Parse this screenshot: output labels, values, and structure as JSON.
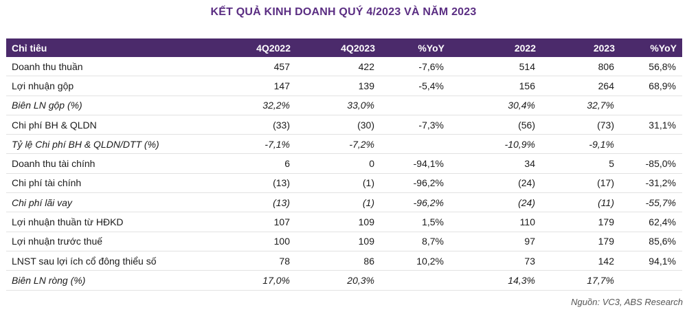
{
  "title": "KẾT QUẢ KINH DOANH QUÝ 4/2023 VÀ NĂM 2023",
  "table": {
    "headers": [
      "Chỉ tiêu",
      "4Q2022",
      "4Q2023",
      "%YoY",
      "2022",
      "2023",
      "%YoY"
    ],
    "rows": [
      {
        "label": "Doanh thu thuần",
        "values": [
          "457",
          "422",
          "-7,6%",
          "514",
          "806",
          "56,8%"
        ],
        "italic": false
      },
      {
        "label": "Lợi nhuận gộp",
        "values": [
          "147",
          "139",
          "-5,4%",
          "156",
          "264",
          "68,9%"
        ],
        "italic": false
      },
      {
        "label": "Biên LN gộp (%)",
        "values": [
          "32,2%",
          "33,0%",
          "",
          "30,4%",
          "32,7%",
          ""
        ],
        "italic": true
      },
      {
        "label": "Chi phí BH & QLDN",
        "values": [
          "(33)",
          "(30)",
          "-7,3%",
          "(56)",
          "(73)",
          "31,1%"
        ],
        "italic": false
      },
      {
        "label": "Tỷ lệ Chi phí BH & QLDN/DTT (%)",
        "values": [
          "-7,1%",
          "-7,2%",
          "",
          "-10,9%",
          "-9,1%",
          ""
        ],
        "italic": true
      },
      {
        "label": "Doanh thu tài chính",
        "values": [
          "6",
          "0",
          "-94,1%",
          "34",
          "5",
          "-85,0%"
        ],
        "italic": false
      },
      {
        "label": "Chi phí tài chính",
        "values": [
          "(13)",
          "(1)",
          "-96,2%",
          "(24)",
          "(17)",
          "-31,2%"
        ],
        "italic": false
      },
      {
        "label": "Chi phí lãi vay",
        "values": [
          "(13)",
          "(1)",
          "-96,2%",
          "(24)",
          "(11)",
          "-55,7%"
        ],
        "italic": true
      },
      {
        "label": "Lợi nhuận thuần từ HĐKD",
        "values": [
          "107",
          "109",
          "1,5%",
          "110",
          "179",
          "62,4%"
        ],
        "italic": false
      },
      {
        "label": "Lợi nhuận trước thuế",
        "values": [
          "100",
          "109",
          "8,7%",
          "97",
          "179",
          "85,6%"
        ],
        "italic": false
      },
      {
        "label": "LNST sau lợi ích cổ đông thiểu số",
        "values": [
          "78",
          "86",
          "10,2%",
          "73",
          "142",
          "94,1%"
        ],
        "italic": false
      },
      {
        "label": "Biên LN ròng (%)",
        "values": [
          "17,0%",
          "20,3%",
          "",
          "14,3%",
          "17,7%",
          ""
        ],
        "italic": true
      }
    ]
  },
  "source": "Nguồn: VC3, ABS Research",
  "colors": {
    "title": "#5a2d82",
    "header_bg": "#4b2a6b",
    "header_text": "#ffffff"
  }
}
